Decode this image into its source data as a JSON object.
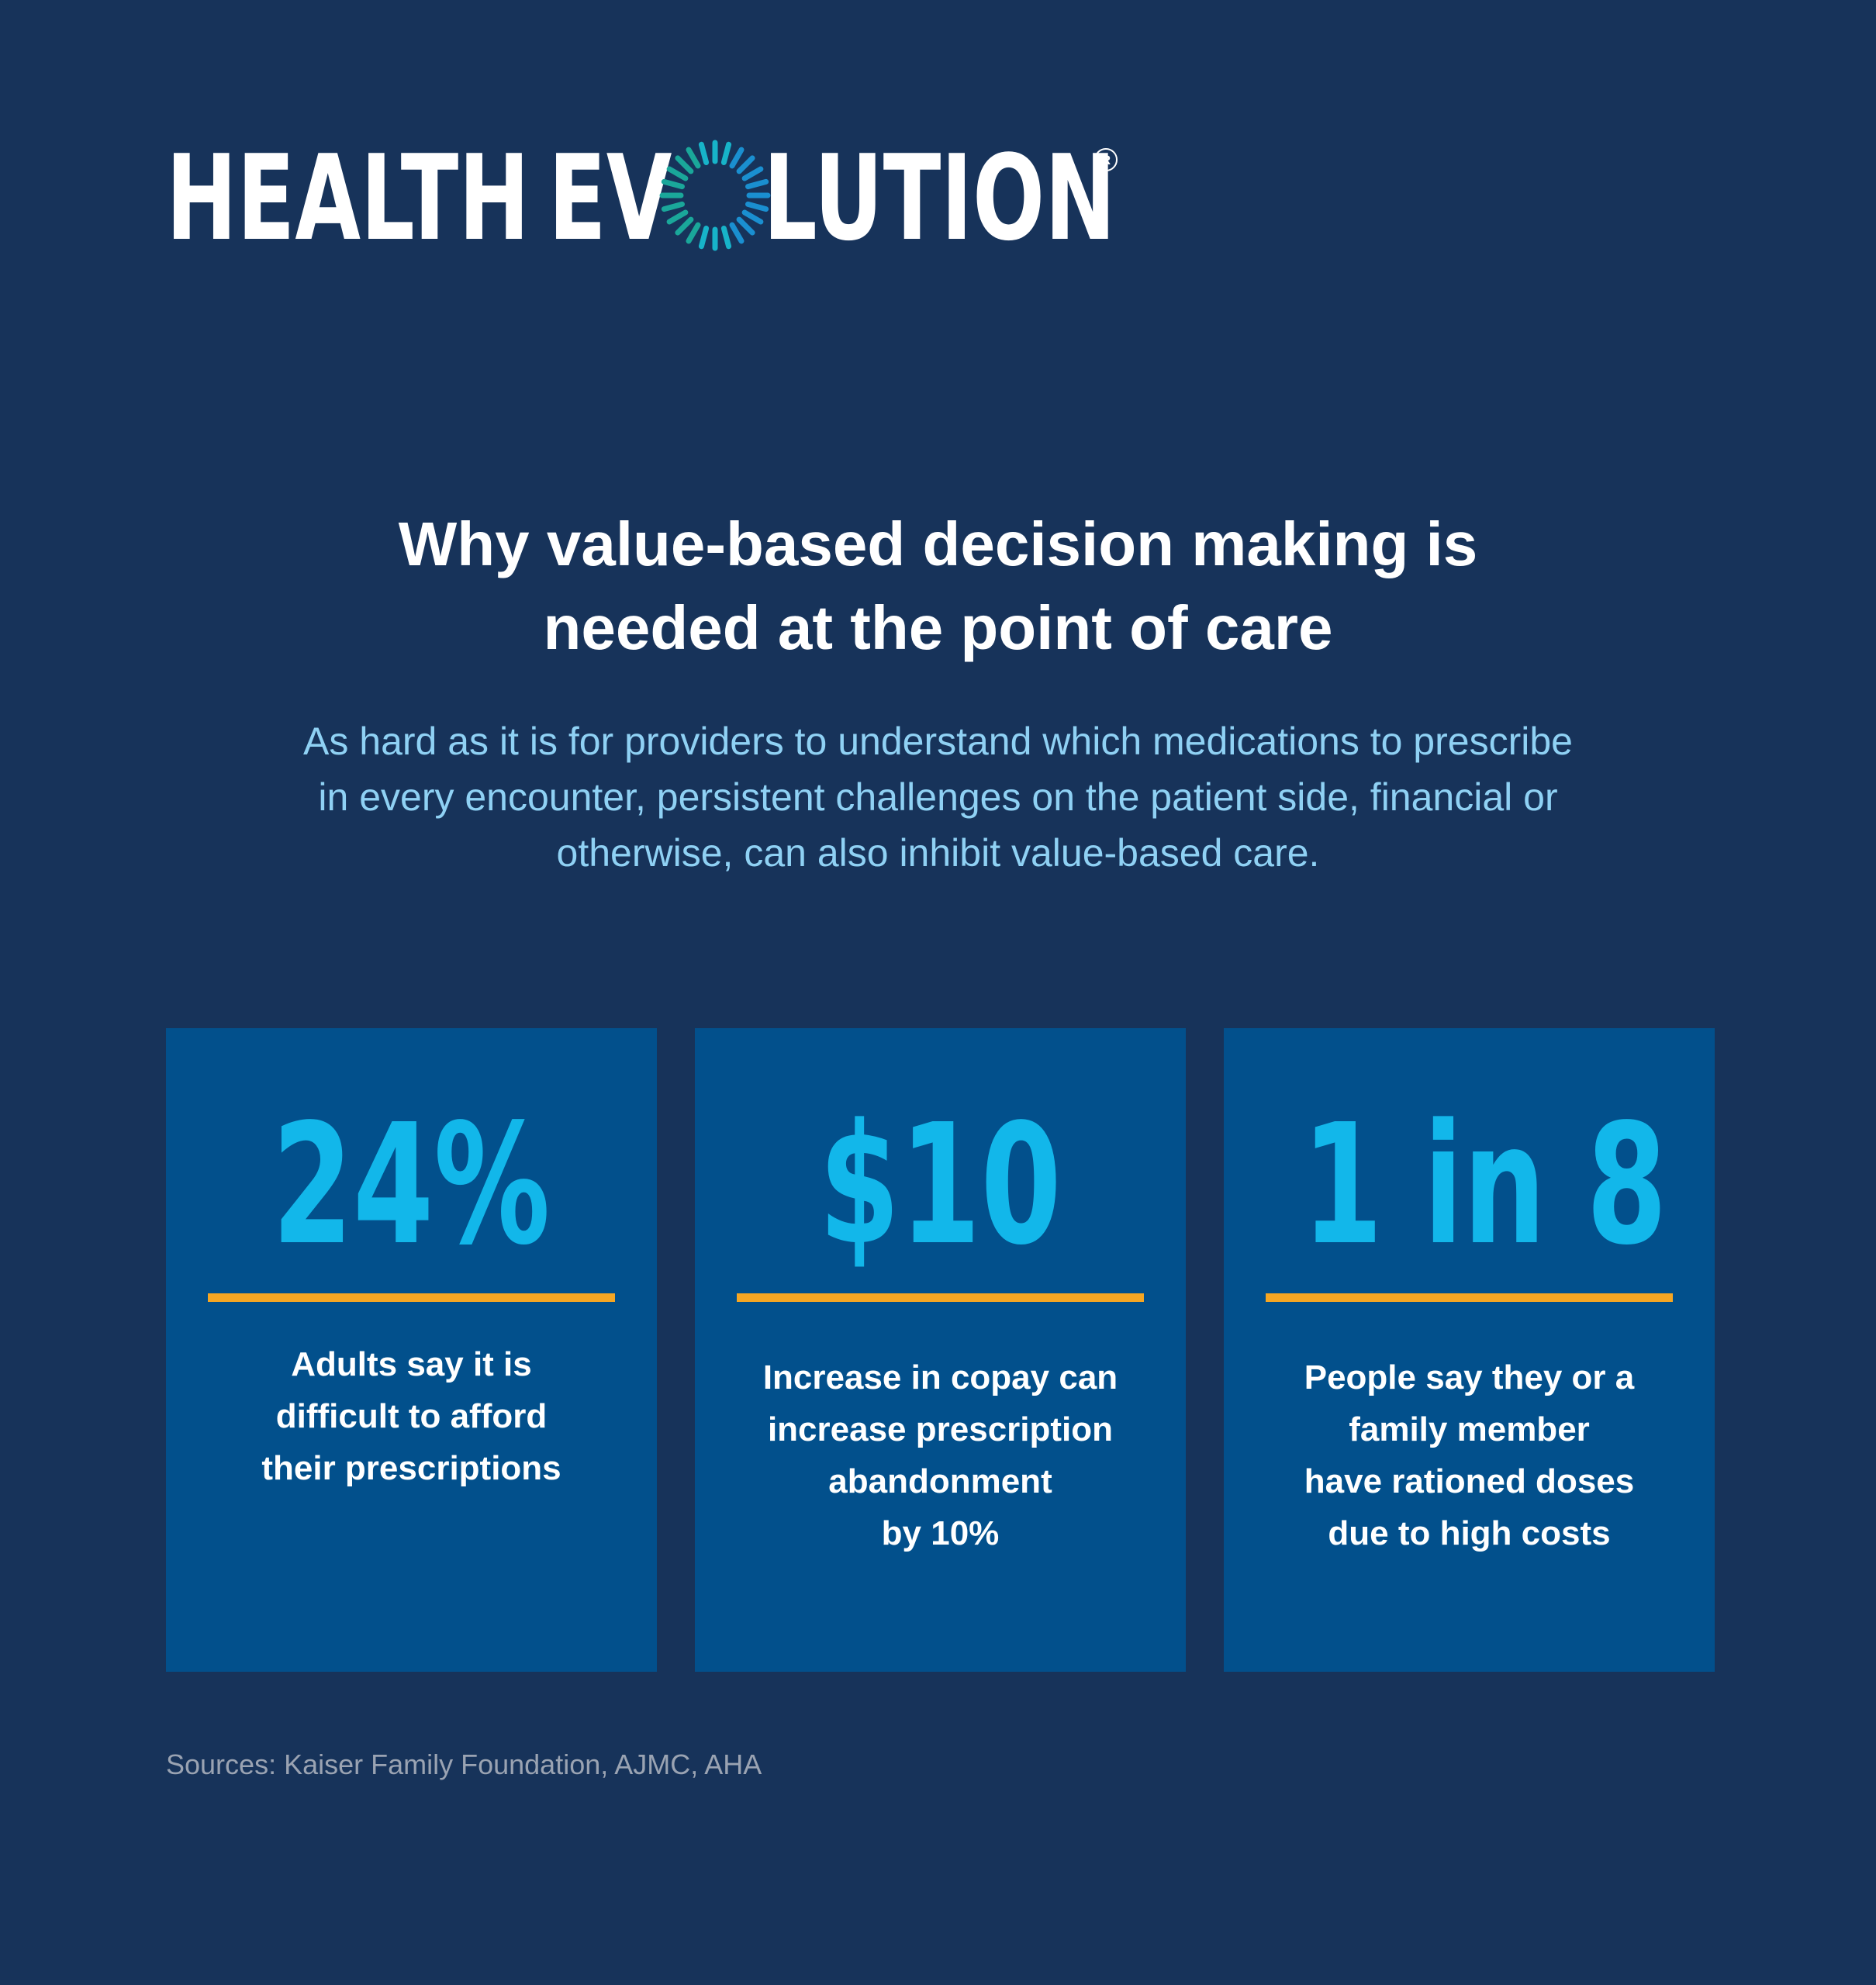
{
  "logo": {
    "text_part_1": "HEALTH",
    "text_part_2": "EV",
    "text_part_3": "LUTION",
    "registered_mark": "®",
    "ring_icon": "spinning-dash-ring-icon",
    "ring_colors": [
      "#1aa79a",
      "#17b3c9",
      "#1a8fd0"
    ]
  },
  "headline": {
    "line_1": "Why value-based decision making is",
    "line_2": "needed at the point of care"
  },
  "intro": {
    "line_1": "As hard as it is for providers to understand which medications to prescribe",
    "line_2": "in every encounter, persistent challenges on the patient side, financial or",
    "line_3": "otherwise, can also inhibit value-based care."
  },
  "cards": [
    {
      "stat": "24%",
      "lines": [
        "Adults say it is",
        "difficult to afford",
        "their prescriptions"
      ]
    },
    {
      "stat": "$10",
      "lines": [
        "Increase in copay can",
        "increase prescription",
        "abandonment",
        "by 10%"
      ]
    },
    {
      "stat": "1 in 8",
      "lines": [
        "People say they or a",
        "family member",
        "have rationed doses",
        "due to high costs"
      ]
    }
  ],
  "sources": "Sources: Kaiser Family Foundation, AJMC, AHA",
  "colors": {
    "background": "#17335a",
    "card": "#02508c",
    "stat": "#12b7ea",
    "rule": "#f5a623",
    "intro_text": "#8fd1f4",
    "sources_text": "#9aa3b2"
  }
}
